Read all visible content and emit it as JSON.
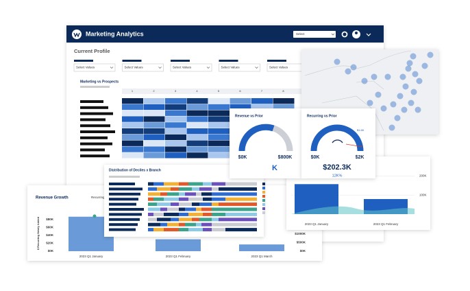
{
  "header": {
    "title": "Marketing Analytics",
    "select": "Select"
  },
  "profile": {
    "title": "Current Profile",
    "filters": [
      "Select Values",
      "Select Values",
      "Select Values",
      "Select Values",
      "Select Values"
    ]
  },
  "heatmap": {
    "title": "Marketing vs Prospects",
    "columns": [
      "1",
      "2",
      "3",
      "4",
      "5",
      "6",
      "7",
      "8",
      "9"
    ]
  },
  "gauge_revenue": {
    "title": "Revenue vs Prior",
    "min": "$0K",
    "max": "$800K",
    "value": "K"
  },
  "gauge_recurring": {
    "title": "Recurring vs Prior",
    "min": "$0K",
    "max": "$2K",
    "target": "$1.6K",
    "value": "$202.3K",
    "change": "12K%"
  },
  "distribution": {
    "title": "Distribution of Deciles x Branch"
  },
  "chart_data": [
    {
      "type": "bar",
      "title": "Revenue Growth",
      "legend": "Recurring",
      "y_label": "$ Recurring Newly Added",
      "categories": [
        "2023 Q1 January",
        "2023 Q1 February",
        "2023 Q1 March"
      ],
      "values": [
        87,
        30,
        17
      ],
      "color": "#6a9bd8",
      "ylim": [
        0,
        90
      ],
      "yticks": [
        {
          "value": 0,
          "label": "$0K"
        },
        {
          "value": 20,
          "label": "$20K"
        },
        {
          "value": 40,
          "label": "$40K"
        },
        {
          "value": 60,
          "label": "$60K"
        },
        {
          "value": 80,
          "label": "$80K"
        }
      ],
      "y2lim": [
        0,
        2080
      ],
      "y2ticks": [
        {
          "value": 0,
          "label": "$0K"
        },
        {
          "value": 500,
          "label": "$500K"
        },
        {
          "value": 1000,
          "label": "$1000K"
        }
      ]
    },
    {
      "type": "bar",
      "categories": [
        "2023 Q1 January",
        "2023 Q1 February"
      ],
      "values": [
        157,
        79
      ],
      "color": "#1f5fbf",
      "ylim": [
        0,
        230
      ],
      "yticks": [
        {
          "value": 100,
          "label": "100K"
        },
        {
          "value": 200,
          "label": "200K"
        }
      ]
    }
  ]
}
